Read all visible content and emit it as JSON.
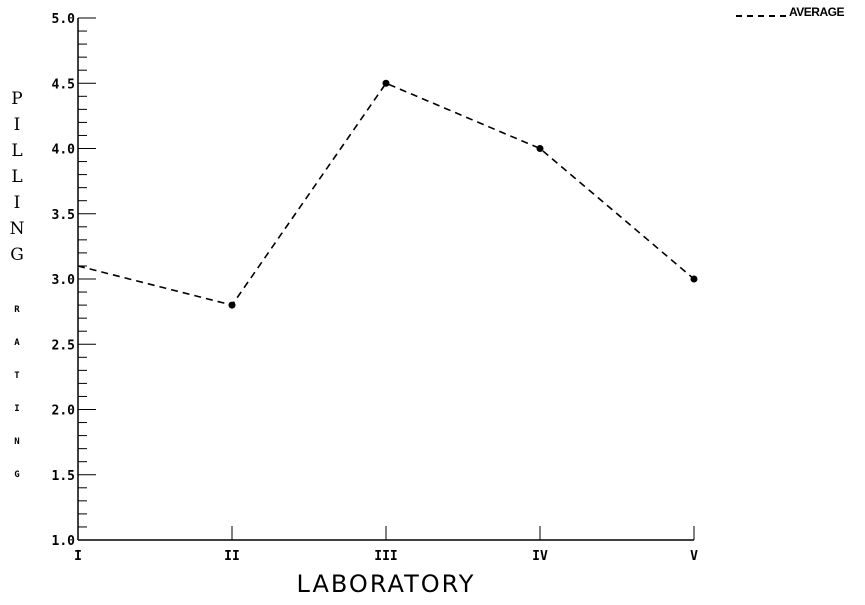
{
  "chart_data": {
    "type": "line",
    "title": "",
    "categories": [
      "I",
      "II",
      "III",
      "IV",
      "V"
    ],
    "series": [
      {
        "name": "AVERAGE",
        "values": [
          3.1,
          2.8,
          4.5,
          4.0,
          3.0
        ],
        "style": "dashed",
        "color": "#000000"
      }
    ],
    "xlabel": "LABORATORY",
    "ylabel_top": "PILLING",
    "ylabel_bottom": "RATING",
    "ylim": [
      1.0,
      5.0
    ],
    "yticks": [
      "1.0",
      "1.5",
      "2.0",
      "2.5",
      "3.0",
      "3.5",
      "4.0",
      "4.5",
      "5.0"
    ],
    "grid": false,
    "legend_position": "top-right"
  }
}
